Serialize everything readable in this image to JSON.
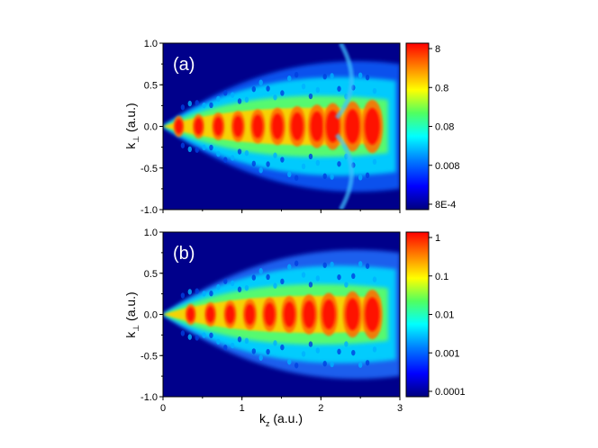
{
  "chart_data": [
    {
      "type": "heatmap",
      "panel_label": "(a)",
      "xlabel": "",
      "ylabel": "k⊥ (a.u.)",
      "ylabel_main": "k",
      "ylabel_sub": "⊥",
      "ylabel_rest": " (a.u.)",
      "xlim": [
        0,
        3
      ],
      "ylim": [
        -1.0,
        1.0
      ],
      "x_ticks": [
        0,
        1,
        2,
        3
      ],
      "x_tick_labels": [],
      "y_ticks": [
        1.0,
        0.5,
        0.0,
        -0.5,
        -1.0
      ],
      "y_tick_labels": [
        "1.0",
        "0.5",
        "0.0",
        "-0.5",
        "-1.0"
      ],
      "colorbar": {
        "scale": "log",
        "range": [
          0.0008,
          8
        ],
        "ticks": [
          8,
          0.8,
          0.08,
          0.008,
          0.0008
        ],
        "tick_labels": [
          "8",
          "0.8",
          "0.08",
          "0.008",
          "8E-4"
        ]
      },
      "structure": {
        "central_lobe_peak_x": [
          0.2,
          0.45,
          0.7,
          0.95,
          1.2,
          1.45,
          1.7,
          1.95,
          2.15,
          2.4,
          2.65
        ],
        "outer_arc_x": 2.5
      }
    },
    {
      "type": "heatmap",
      "panel_label": "(b)",
      "xlabel": "k_z (a.u.)",
      "xlabel_main": "k",
      "xlabel_sub": "z",
      "xlabel_rest": " (a.u.)",
      "ylabel": "k⊥ (a.u.)",
      "ylabel_main": "k",
      "ylabel_sub": "⊥",
      "ylabel_rest": " (a.u.)",
      "xlim": [
        0,
        3
      ],
      "ylim": [
        -1.0,
        1.0
      ],
      "x_ticks": [
        0,
        1,
        2,
        3
      ],
      "x_tick_labels": [
        "0",
        "1",
        "2",
        "3"
      ],
      "y_ticks": [
        1.0,
        0.5,
        0.0,
        -0.5,
        -1.0
      ],
      "y_tick_labels": [
        "1.0",
        "0.5",
        "0.0",
        "-0.5",
        "-1.0"
      ],
      "colorbar": {
        "scale": "log",
        "range": [
          0.0001,
          1
        ],
        "ticks": [
          1,
          0.1,
          0.01,
          0.001,
          0.0001
        ],
        "tick_labels": [
          "1",
          "0.1",
          "0.01",
          "0.001",
          "0.0001"
        ]
      },
      "structure": {
        "central_lobe_peak_x": [
          0.35,
          0.6,
          0.85,
          1.1,
          1.35,
          1.6,
          1.85,
          2.1,
          2.4,
          2.65
        ]
      }
    }
  ],
  "colors": {
    "background_low": "#00008b",
    "peak": "#ff0000",
    "colormap": [
      "#000080",
      "#0000ff",
      "#0080ff",
      "#00ffff",
      "#40ff80",
      "#ffff00",
      "#ff8000",
      "#ff0000"
    ]
  }
}
